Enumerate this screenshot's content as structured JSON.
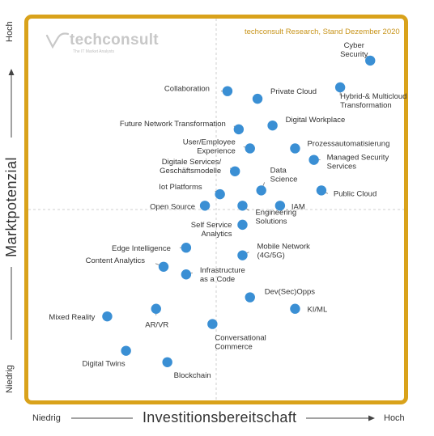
{
  "source_note": "techconsult Research, Stand Dezember 2020",
  "logo": {
    "name": "techconsult",
    "tagline": "The IT Market Analysts",
    "icon": "swoosh-logo-icon"
  },
  "y_axis": {
    "title": "Marktpotenzial",
    "low": "Niedrig",
    "high": "Hoch"
  },
  "x_axis": {
    "title": "Investitionsbereitschaft",
    "low": "Niedrig",
    "high": "Hoch"
  },
  "colors": {
    "frame": "#d9a21b",
    "point": "#3a8fd4",
    "source_note": "#c8941a",
    "quadrant_lines": "#cfcfcf"
  },
  "chart_data": {
    "type": "scatter",
    "xlabel": "Investitionsbereitschaft",
    "ylabel": "Marktpotenzial",
    "xlim": [
      0,
      100
    ],
    "ylim": [
      0,
      100
    ],
    "grid": false,
    "quadrant_split": {
      "x": 50,
      "y": 50
    },
    "points": [
      {
        "label": "Cyber Security",
        "x": 91,
        "y": 89
      },
      {
        "label": "Hybrid-& Multicloud Transformation",
        "x": 83,
        "y": 82
      },
      {
        "label": "Private Cloud",
        "x": 61,
        "y": 79
      },
      {
        "label": "Collaboration",
        "x": 53,
        "y": 81
      },
      {
        "label": "Digital Workplace",
        "x": 65,
        "y": 72
      },
      {
        "label": "Future Network Transformation",
        "x": 56,
        "y": 71
      },
      {
        "label": "Prozessautomatisierung",
        "x": 71,
        "y": 66
      },
      {
        "label": "User/Employee Experience",
        "x": 59,
        "y": 66
      },
      {
        "label": "Managed Security Services",
        "x": 76,
        "y": 63
      },
      {
        "label": "Digitale Services/ Geschäftsmodelle",
        "x": 55,
        "y": 60
      },
      {
        "label": "Data Science",
        "x": 62,
        "y": 55
      },
      {
        "label": "Public Cloud",
        "x": 78,
        "y": 55
      },
      {
        "label": "Iot Platforms",
        "x": 51,
        "y": 54
      },
      {
        "label": "Open Source",
        "x": 47,
        "y": 51
      },
      {
        "label": "Engineering Solutions",
        "x": 57,
        "y": 51
      },
      {
        "label": "IAM",
        "x": 67,
        "y": 51
      },
      {
        "label": "Self Service Analytics",
        "x": 57,
        "y": 46
      },
      {
        "label": "Edge Intelligence",
        "x": 42,
        "y": 40
      },
      {
        "label": "Mobile Network (4G/5G)",
        "x": 57,
        "y": 38
      },
      {
        "label": "Content Analytics",
        "x": 36,
        "y": 35
      },
      {
        "label": "Infrastructure as a Code",
        "x": 42,
        "y": 33
      },
      {
        "label": "Dev(Sec)Opps",
        "x": 59,
        "y": 27
      },
      {
        "label": "KI/ML",
        "x": 71,
        "y": 24
      },
      {
        "label": "Mixed Reality",
        "x": 21,
        "y": 22
      },
      {
        "label": "AR/VR",
        "x": 34,
        "y": 24
      },
      {
        "label": "Conversational Commerce",
        "x": 49,
        "y": 20
      },
      {
        "label": "Digital Twins",
        "x": 26,
        "y": 13
      },
      {
        "label": "Blockchain",
        "x": 37,
        "y": 10
      }
    ]
  }
}
